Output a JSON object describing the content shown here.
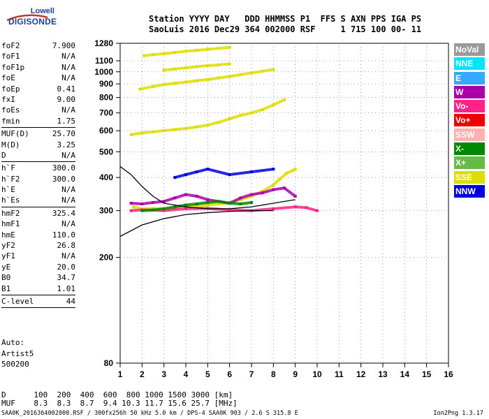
{
  "logo": {
    "line1": "Lowell",
    "line2": "DIGISONDE"
  },
  "header": {
    "row1": "Station YYYY DAY   DDD HHMMSS P1  FFS S AXN PPS IGA PS",
    "row2": "SaoLuis 2016 Dec29 364 002000 RSF     1 715 100 00- 11"
  },
  "params": {
    "groups": [
      [
        [
          "foF2",
          "7.900"
        ],
        [
          "foF1",
          "N/A"
        ],
        [
          "foF1p",
          "N/A"
        ],
        [
          "foE",
          "N/A"
        ],
        [
          "foEp",
          "0.41"
        ],
        [
          "fxI",
          "9.00"
        ],
        [
          "foEs",
          "N/A"
        ],
        [
          "fmin",
          "1.75"
        ]
      ],
      [
        [
          "MUF(D)",
          "25.70"
        ],
        [
          "M(D)",
          "3.25"
        ],
        [
          "D",
          "N/A"
        ]
      ],
      [
        [
          "h`F",
          "300.0"
        ],
        [
          "h`F2",
          "300.0"
        ],
        [
          "h`E",
          "N/A"
        ],
        [
          "h`Es",
          "N/A"
        ]
      ],
      [
        [
          "hmF2",
          "325.4"
        ],
        [
          "hmF1",
          "N/A"
        ],
        [
          "hmE",
          "110.0"
        ],
        [
          "yF2",
          "26.8"
        ],
        [
          "yF1",
          "N/A"
        ],
        [
          "yE",
          "20.0"
        ],
        [
          "B0",
          "34.7"
        ],
        [
          "B1",
          "1.01"
        ]
      ],
      [
        [
          "C-level",
          "44"
        ]
      ]
    ]
  },
  "autoscaling": {
    "line1": "Auto:",
    "line2": "Artist5",
    "line3": "500200"
  },
  "footer": {
    "d_row": "D      100  200  400  600  800 1000 1500 3000 [km]",
    "muf_row": "MUF    8.3  8.3  8.7  9.4 10.3 11.7 15.6 25.7 [MHz]",
    "file_info": "SAA0K_2016364002000.RSF / 300fx256h 50 kHz 5.0 km / DPS-4 SAA0K 903 / 2.6 S 315.8 E",
    "version": "Ion2Png 1.3.17"
  },
  "legend": [
    {
      "label": "NoVal",
      "color": "#999999"
    },
    {
      "label": "NNE",
      "color": "#00e5ff"
    },
    {
      "label": "E",
      "color": "#33aaff"
    },
    {
      "label": "W",
      "color": "#aa00aa"
    },
    {
      "label": "Vo-",
      "color": "#ff2288"
    },
    {
      "label": "Vo+",
      "color": "#ee0000"
    },
    {
      "label": "SSW",
      "color": "#ffb0b0"
    },
    {
      "label": "X-",
      "color": "#008800"
    },
    {
      "label": "X+",
      "color": "#66bb44"
    },
    {
      "label": "SSE",
      "color": "#dddd00"
    },
    {
      "label": "NNW",
      "color": "#0000dd"
    }
  ],
  "chart_data": {
    "type": "scatter",
    "title": "",
    "xlabel": "",
    "ylabel": "",
    "xlim": [
      1,
      16
    ],
    "x_ticks": [
      1,
      2,
      3,
      4,
      5,
      6,
      7,
      8,
      9,
      10,
      11,
      12,
      13,
      14,
      15,
      16
    ],
    "y_scale": "log",
    "ylim": [
      80,
      1280
    ],
    "y_ticks": [
      80,
      200,
      300,
      400,
      500,
      600,
      700,
      800,
      900,
      1000,
      1100,
      1280
    ],
    "grid": true,
    "series": [
      {
        "name": "SSE",
        "color": "#dddd00",
        "x": [
          1.6,
          2.0,
          2.5,
          3.0,
          3.5,
          4.0,
          4.5,
          5.0,
          5.5,
          6.0,
          6.5,
          7.0,
          7.5,
          8.0,
          8.3,
          8.6,
          8.9,
          9.0
        ],
        "y": [
          310,
          305,
          306,
          305,
          307,
          310,
          312,
          315,
          318,
          322,
          330,
          340,
          355,
          375,
          395,
          415,
          425,
          430
        ]
      },
      {
        "name": "SSE",
        "color": "#dddd00",
        "x": [
          1.5,
          2.0,
          2.5,
          3.0,
          3.5,
          4.0,
          4.5,
          5.0,
          5.5,
          6.0,
          6.5,
          7.0,
          7.5,
          8.0,
          8.5
        ],
        "y": [
          580,
          588,
          594,
          600,
          606,
          612,
          620,
          630,
          645,
          665,
          685,
          700,
          720,
          750,
          785
        ]
      },
      {
        "name": "SSE",
        "color": "#dddd00",
        "x": [
          1.9,
          2.5,
          3.0,
          3.5,
          4.0,
          4.5,
          5.0,
          5.5,
          6.0,
          6.5,
          7.0,
          7.5,
          8.0
        ],
        "y": [
          860,
          880,
          895,
          905,
          915,
          925,
          935,
          948,
          960,
          975,
          990,
          1005,
          1020
        ]
      },
      {
        "name": "SSE",
        "color": "#dddd00",
        "x": [
          2.1,
          2.5,
          3.0,
          3.5,
          4.0,
          4.5,
          5.0,
          5.5,
          6.0
        ],
        "y": [
          1150,
          1160,
          1170,
          1182,
          1195,
          1205,
          1215,
          1225,
          1235
        ]
      },
      {
        "name": "SSE",
        "color": "#dddd00",
        "x": [
          3.0,
          3.5,
          4.0,
          4.5,
          5.0,
          5.5,
          6.0
        ],
        "y": [
          1015,
          1025,
          1035,
          1045,
          1055,
          1062,
          1070
        ]
      },
      {
        "name": "W",
        "color": "#aa00aa",
        "x": [
          1.5,
          2.0,
          2.5,
          3.0,
          3.5,
          4.0,
          4.5,
          5.0,
          5.5,
          6.0,
          6.5,
          7.0,
          7.5,
          8.0,
          8.5,
          9.0
        ],
        "y": [
          320,
          318,
          322,
          325,
          335,
          345,
          340,
          330,
          325,
          320,
          335,
          345,
          350,
          360,
          365,
          340
        ]
      },
      {
        "name": "Vo-",
        "color": "#ff2288",
        "x": [
          1.5,
          2.0,
          3.0,
          4.0,
          5.0,
          6.0,
          7.0,
          8.0,
          9.0,
          9.5,
          10.0
        ],
        "y": [
          300,
          302,
          300,
          305,
          306,
          302,
          300,
          305,
          310,
          308,
          300
        ]
      },
      {
        "name": "X-",
        "color": "#008800",
        "x": [
          2.0,
          2.5,
          3.0,
          3.5,
          4.0,
          4.5,
          5.0,
          5.5,
          6.0,
          6.5,
          7.0
        ],
        "y": [
          300,
          302,
          305,
          310,
          315,
          318,
          322,
          325,
          320,
          318,
          322
        ]
      },
      {
        "name": "NNW",
        "color": "#0000dd",
        "x": [
          3.5,
          4.0,
          4.5,
          5.0,
          6.0,
          7.0,
          8.0
        ],
        "y": [
          400,
          410,
          420,
          430,
          410,
          420,
          430
        ]
      }
    ],
    "profile_curves": [
      {
        "x": [
          1,
          2,
          3,
          4,
          5,
          6,
          7,
          8
        ],
        "y": [
          240,
          265,
          280,
          290,
          295,
          298,
          300,
          300
        ]
      },
      {
        "x": [
          1,
          1.5,
          2,
          2.5,
          3,
          4,
          5,
          6,
          7,
          8,
          9
        ],
        "y": [
          440,
          410,
          370,
          340,
          320,
          310,
          305,
          305,
          310,
          320,
          330
        ]
      }
    ]
  }
}
